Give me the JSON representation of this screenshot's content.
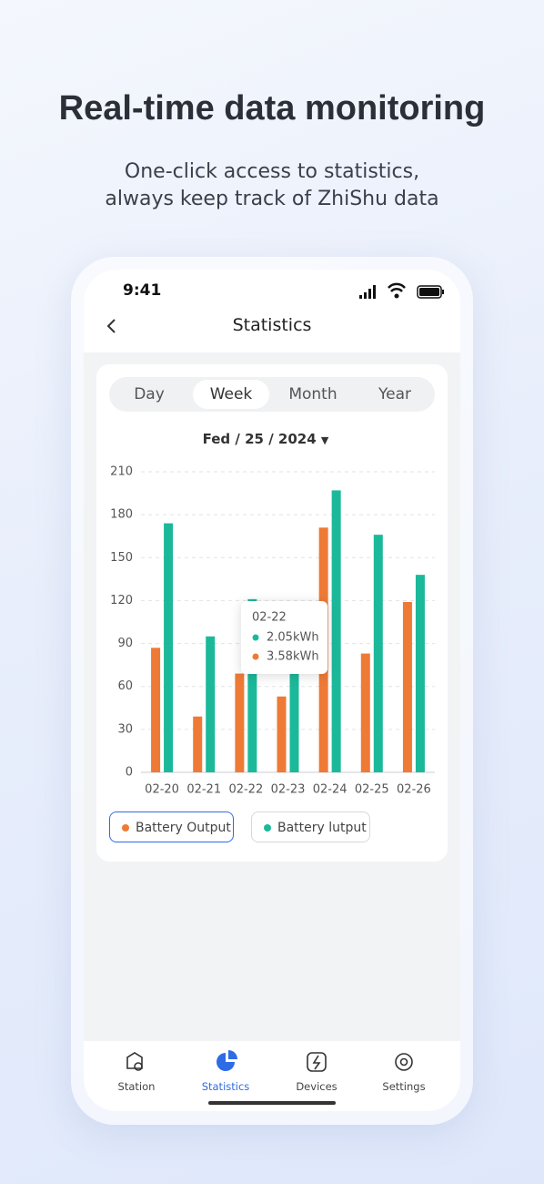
{
  "header": {
    "title": "Real-time data monitoring",
    "subtitle": [
      "One-click access to statistics,",
      "always keep track of ZhiShu data"
    ]
  },
  "status_bar": {
    "time": "9:41"
  },
  "nav": {
    "title": "Statistics"
  },
  "tabs": [
    "Day",
    "Week",
    "Month",
    "Year"
  ],
  "date": "Fed / 25 / 2024",
  "chart_data": {
    "type": "bar",
    "categories": [
      "02-20",
      "02-21",
      "02-22",
      "02-23",
      "02-24",
      "02-25",
      "02-26"
    ],
    "series": [
      {
        "name": "Battery Output",
        "color": "#ee7a36",
        "values": [
          87,
          39,
          69,
          53,
          171,
          83,
          119
        ]
      },
      {
        "name": "Battery lutput",
        "color": "#1bb99a",
        "values": [
          174,
          95,
          121,
          75,
          197,
          166,
          138
        ]
      }
    ],
    "ylim": [
      0,
      210
    ],
    "yticks": [
      0,
      30,
      60,
      90,
      120,
      150,
      180,
      210
    ],
    "grid": true
  },
  "tooltip": {
    "title": "02-22",
    "items": [
      "2.05kWh",
      "3.58kWh"
    ]
  },
  "tabbar": [
    "Station",
    "Statistics",
    "Devices",
    "Settings"
  ]
}
